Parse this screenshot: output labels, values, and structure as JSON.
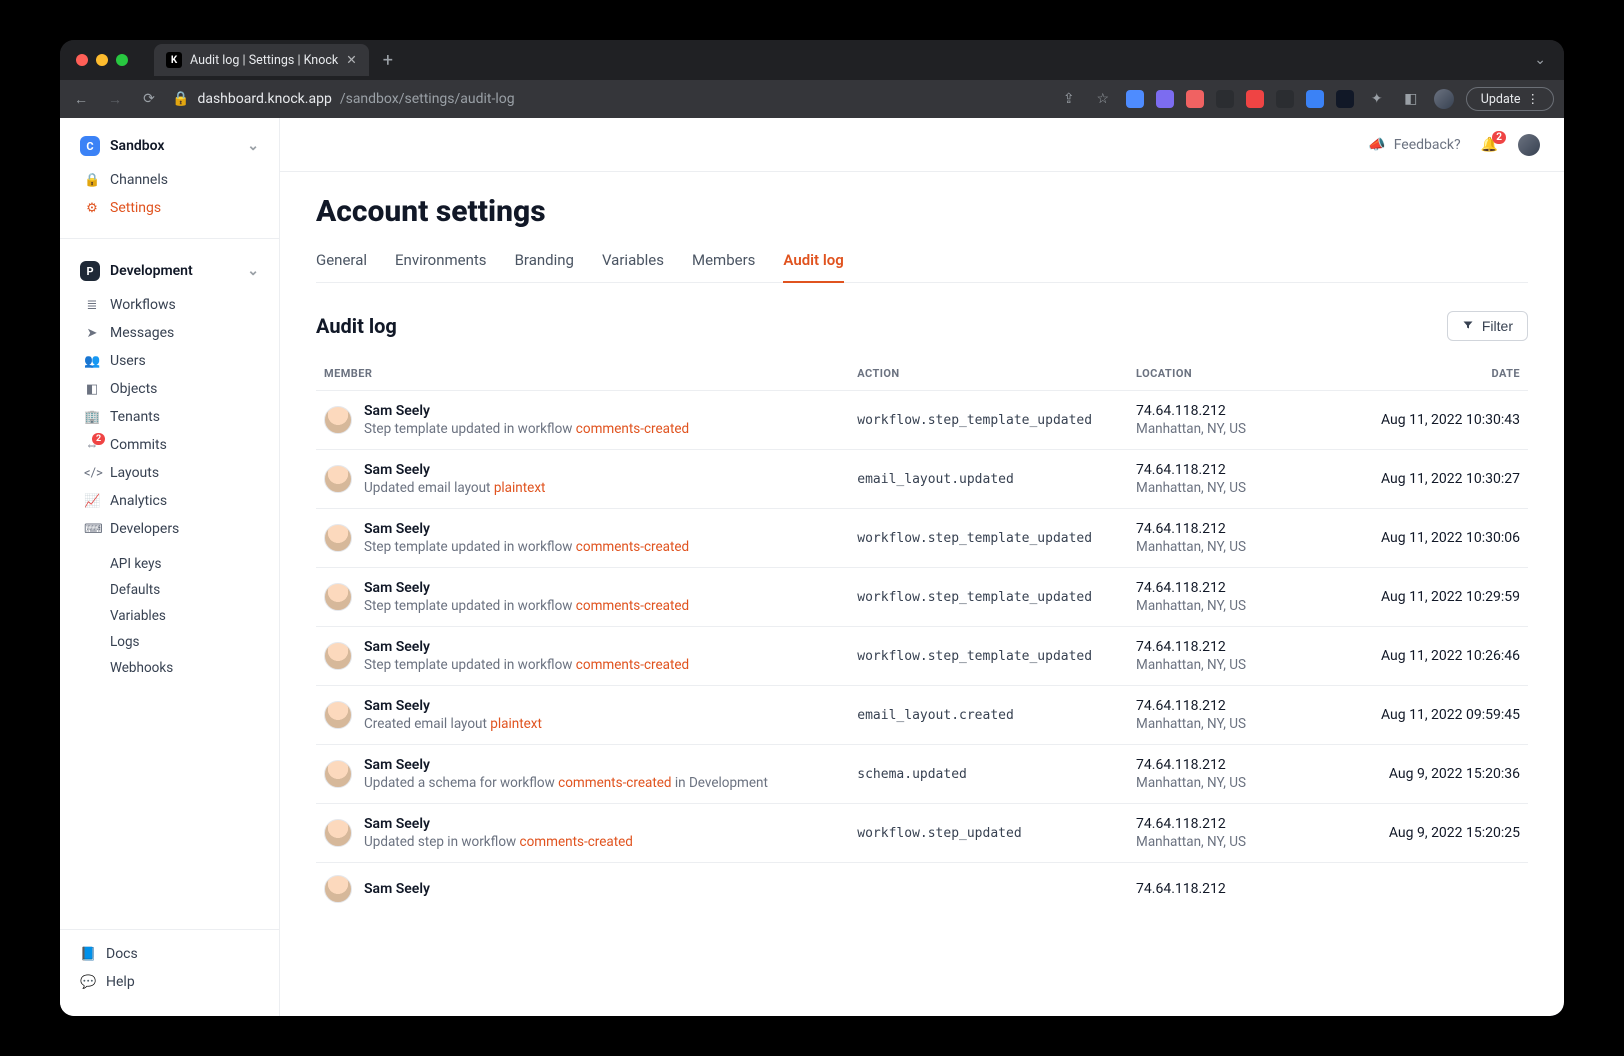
{
  "browser": {
    "tab_title": "Audit log | Settings | Knock",
    "url_host": "dashboard.knock.app",
    "url_path": "/sandbox/settings/audit-log",
    "update_label": "Update",
    "ext_colors": [
      "#4e8cff",
      "#7c6cf0",
      "#f06262",
      "#2b2d31",
      "#ef4444",
      "#2b2d31",
      "#3b82f6",
      "#111827"
    ]
  },
  "sidebar": {
    "workspace": "Sandbox",
    "top_items": [
      {
        "icon": "🔒",
        "label": "Channels"
      },
      {
        "icon": "⚙",
        "label": "Settings",
        "active": true
      }
    ],
    "env": "Development",
    "items": [
      {
        "icon": "≣",
        "label": "Workflows"
      },
      {
        "icon": "➤",
        "label": "Messages"
      },
      {
        "icon": "👥",
        "label": "Users"
      },
      {
        "icon": "◧",
        "label": "Objects"
      },
      {
        "icon": "🏢",
        "label": "Tenants"
      },
      {
        "icon": "⇔",
        "label": "Commits",
        "badge": "2"
      },
      {
        "icon": "</>",
        "label": "Layouts"
      },
      {
        "icon": "📈",
        "label": "Analytics"
      },
      {
        "icon": "⌨",
        "label": "Developers"
      }
    ],
    "dev_children": [
      "API keys",
      "Defaults",
      "Variables",
      "Logs",
      "Webhooks"
    ],
    "bottom": [
      {
        "icon": "📘",
        "label": "Docs"
      },
      {
        "icon": "💬",
        "label": "Help"
      }
    ]
  },
  "topbar": {
    "feedback": "Feedback?",
    "notif_count": "2"
  },
  "page": {
    "title": "Account settings",
    "tabs": [
      "General",
      "Environments",
      "Branding",
      "Variables",
      "Members",
      "Audit log"
    ],
    "active_tab": 5,
    "section_title": "Audit log",
    "filter_label": "Filter",
    "columns": [
      "MEMBER",
      "ACTION",
      "LOCATION",
      "DATE"
    ]
  },
  "rows": [
    {
      "name": "Sam Seely",
      "desc_pre": "Step template updated in workflow ",
      "desc_link": "comments-created",
      "desc_post": "",
      "action": "workflow.step_template_updated",
      "ip": "74.64.118.212",
      "place": "Manhattan, NY, US",
      "date": "Aug 11, 2022 10:30:43"
    },
    {
      "name": "Sam Seely",
      "desc_pre": "Updated email layout ",
      "desc_link": "plaintext",
      "desc_post": "",
      "action": "email_layout.updated",
      "ip": "74.64.118.212",
      "place": "Manhattan, NY, US",
      "date": "Aug 11, 2022 10:30:27"
    },
    {
      "name": "Sam Seely",
      "desc_pre": "Step template updated in workflow ",
      "desc_link": "comments-created",
      "desc_post": "",
      "action": "workflow.step_template_updated",
      "ip": "74.64.118.212",
      "place": "Manhattan, NY, US",
      "date": "Aug 11, 2022 10:30:06"
    },
    {
      "name": "Sam Seely",
      "desc_pre": "Step template updated in workflow ",
      "desc_link": "comments-created",
      "desc_post": "",
      "action": "workflow.step_template_updated",
      "ip": "74.64.118.212",
      "place": "Manhattan, NY, US",
      "date": "Aug 11, 2022 10:29:59"
    },
    {
      "name": "Sam Seely",
      "desc_pre": "Step template updated in workflow ",
      "desc_link": "comments-created",
      "desc_post": "",
      "action": "workflow.step_template_updated",
      "ip": "74.64.118.212",
      "place": "Manhattan, NY, US",
      "date": "Aug 11, 2022 10:26:46"
    },
    {
      "name": "Sam Seely",
      "desc_pre": "Created email layout ",
      "desc_link": "plaintext",
      "desc_post": "",
      "action": "email_layout.created",
      "ip": "74.64.118.212",
      "place": "Manhattan, NY, US",
      "date": "Aug 11, 2022 09:59:45"
    },
    {
      "name": "Sam Seely",
      "desc_pre": "Updated a schema for workflow ",
      "desc_link": "comments-created",
      "desc_post": " in Development",
      "action": "schema.updated",
      "ip": "74.64.118.212",
      "place": "Manhattan, NY, US",
      "date": "Aug 9, 2022 15:20:36"
    },
    {
      "name": "Sam Seely",
      "desc_pre": "Updated step in workflow ",
      "desc_link": "comments-created",
      "desc_post": "",
      "action": "workflow.step_updated",
      "ip": "74.64.118.212",
      "place": "Manhattan, NY, US",
      "date": "Aug 9, 2022 15:20:25"
    },
    {
      "name": "Sam Seely",
      "desc_pre": "",
      "desc_link": "",
      "desc_post": "",
      "action": "",
      "ip": "74.64.118.212",
      "place": "",
      "date": ""
    }
  ]
}
